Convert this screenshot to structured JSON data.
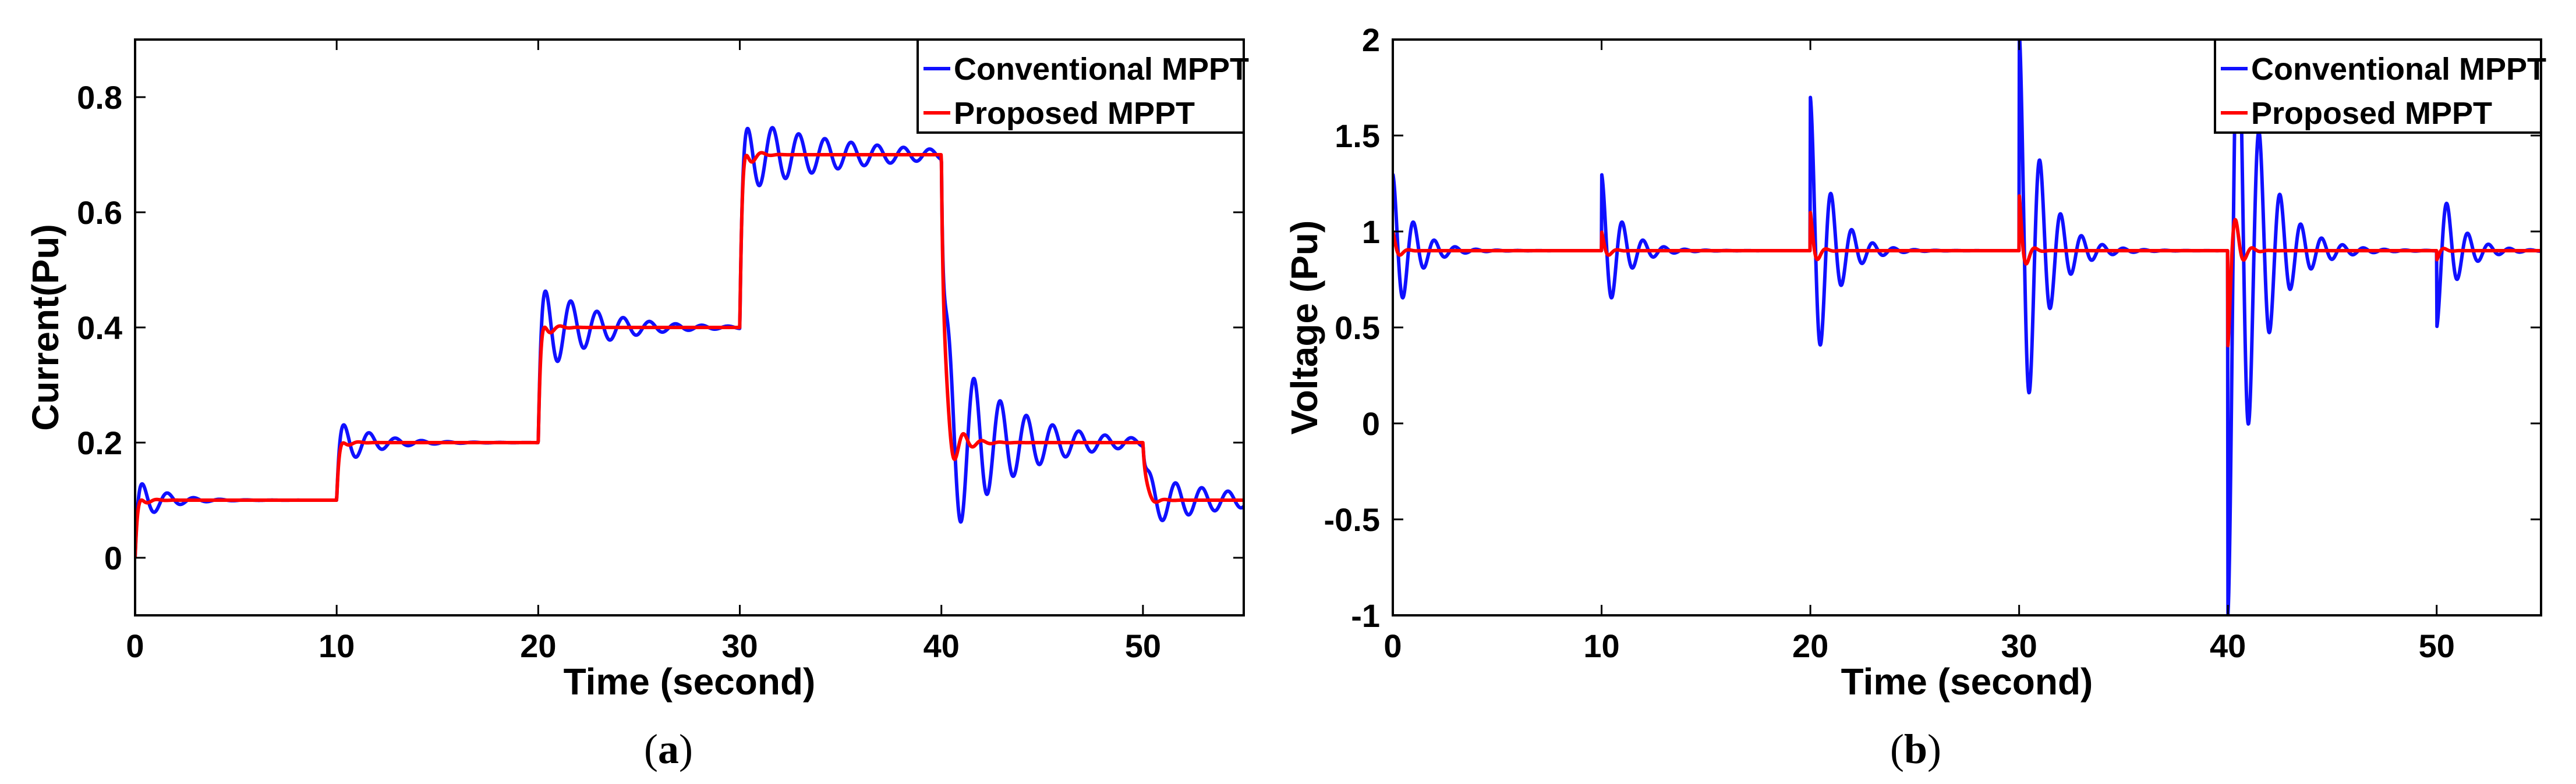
{
  "colors": {
    "conventional": "#1010ff",
    "proposed": "#ff0000",
    "axis": "#000000"
  },
  "chart_data": [
    {
      "type": "line",
      "panel": "a",
      "caption": {
        "open": "(",
        "letter": "a",
        "close": ")"
      },
      "xlabel": "Time (second)",
      "ylabel": "Current(Pu)",
      "xlim": [
        0,
        55
      ],
      "ylim": [
        -0.1,
        0.9
      ],
      "xticks": [
        0,
        10,
        20,
        30,
        40,
        50
      ],
      "xtick_labels": [
        "0",
        "10",
        "20",
        "30",
        "40",
        "50"
      ],
      "yticks": [
        0,
        0.2,
        0.4,
        0.6,
        0.8
      ],
      "ytick_labels": [
        "0",
        "0.2",
        "0.4",
        "0.6",
        "0.8"
      ],
      "legend_position": "top-right",
      "series": [
        {
          "name": "Conventional MPPT",
          "color": "#1010ff",
          "segments": [
            {
              "t0": 0,
              "t1": 10,
              "from": 0.0,
              "to": 0.1,
              "amp": 0.045,
              "decay": 0.8,
              "period": 1.3
            },
            {
              "t0": 10,
              "t1": 20,
              "from": 0.1,
              "to": 0.2,
              "amp": 0.045,
              "decay": 0.6,
              "period": 1.3
            },
            {
              "t0": 20,
              "t1": 30,
              "from": 0.2,
              "to": 0.4,
              "amp": 0.085,
              "decay": 0.38,
              "period": 1.3
            },
            {
              "t0": 30,
              "t1": 40,
              "from": 0.4,
              "to": 0.7,
              "amp": 0.065,
              "decay": 0.2,
              "period": 1.3
            },
            {
              "t0": 40,
              "t1": 50,
              "from": 0.7,
              "to": 0.2,
              "amp": 0.19,
              "decay": 0.33,
              "period": 1.3
            },
            {
              "t0": 50,
              "t1": 55,
              "from": 0.2,
              "to": 0.1,
              "amp": 0.045,
              "decay": 0.25,
              "period": 1.3
            }
          ]
        },
        {
          "name": "Proposed MPPT",
          "color": "#ff0000",
          "segments": [
            {
              "t0": 0,
              "t1": 10,
              "from": 0.0,
              "to": 0.1,
              "amp": 0.02,
              "decay": 2.5,
              "period": 0.9
            },
            {
              "t0": 10,
              "t1": 20,
              "from": 0.1,
              "to": 0.2,
              "amp": 0.018,
              "decay": 2.5,
              "period": 0.9
            },
            {
              "t0": 20,
              "t1": 30,
              "from": 0.2,
              "to": 0.4,
              "amp": 0.04,
              "decay": 2.5,
              "period": 0.9
            },
            {
              "t0": 30,
              "t1": 40,
              "from": 0.4,
              "to": 0.7,
              "amp": 0.055,
              "decay": 2.5,
              "period": 0.9
            },
            {
              "t0": 40,
              "t1": 50,
              "from": 0.7,
              "to": 0.2,
              "amp": 0.09,
              "decay": 1.6,
              "period": 0.9
            },
            {
              "t0": 50,
              "t1": 55,
              "from": 0.2,
              "to": 0.1,
              "amp": 0.02,
              "decay": 2.5,
              "period": 0.9
            }
          ]
        }
      ]
    },
    {
      "type": "line",
      "panel": "b",
      "caption": {
        "open": "(",
        "letter": "b",
        "close": ")"
      },
      "xlabel": "Time (second)",
      "ylabel": "Voltage (Pu)",
      "xlim": [
        0,
        55
      ],
      "ylim": [
        -1,
        2
      ],
      "xticks": [
        0,
        10,
        20,
        30,
        40,
        50
      ],
      "xtick_labels": [
        "0",
        "10",
        "20",
        "30",
        "40",
        "50"
      ],
      "yticks": [
        -1,
        -0.5,
        0,
        0.5,
        1,
        1.5,
        2
      ],
      "ytick_labels": [
        "-1",
        "-0.5",
        "0",
        "0.5",
        "1",
        "1.5",
        "2"
      ],
      "legend_position": "top-right",
      "baseline": 0.9,
      "series": [
        {
          "name": "Conventional MPPT",
          "color": "#1010ff",
          "transients": [
            {
              "t": 0,
              "amp": 0.4,
              "decay": 1.0,
              "period": 1.0
            },
            {
              "t": 10,
              "amp": 0.4,
              "decay": 1.0,
              "period": 1.0
            },
            {
              "t": 20,
              "amp": 0.8,
              "decay": 1.0,
              "period": 1.0
            },
            {
              "t": 30,
              "amp": 1.15,
              "decay": 0.9,
              "period": 1.0
            },
            {
              "t": 40,
              "amp": -1.9,
              "decay": 0.75,
              "period": 1.0
            },
            {
              "t": 50,
              "amp": -0.4,
              "decay": 1.0,
              "period": 1.0
            }
          ]
        },
        {
          "name": "Proposed MPPT",
          "color": "#ff0000",
          "transients": [
            {
              "t": 0,
              "amp": 0.1,
              "decay": 4.0,
              "period": 0.8
            },
            {
              "t": 10,
              "amp": 0.1,
              "decay": 4.0,
              "period": 0.8
            },
            {
              "t": 20,
              "amp": 0.2,
              "decay": 4.0,
              "period": 0.8
            },
            {
              "t": 30,
              "amp": 0.3,
              "decay": 4.0,
              "period": 0.8
            },
            {
              "t": 40,
              "amp": -0.5,
              "decay": 3.0,
              "period": 0.8
            },
            {
              "t": 50,
              "amp": -0.05,
              "decay": 4.0,
              "period": 0.8
            }
          ]
        }
      ]
    }
  ]
}
